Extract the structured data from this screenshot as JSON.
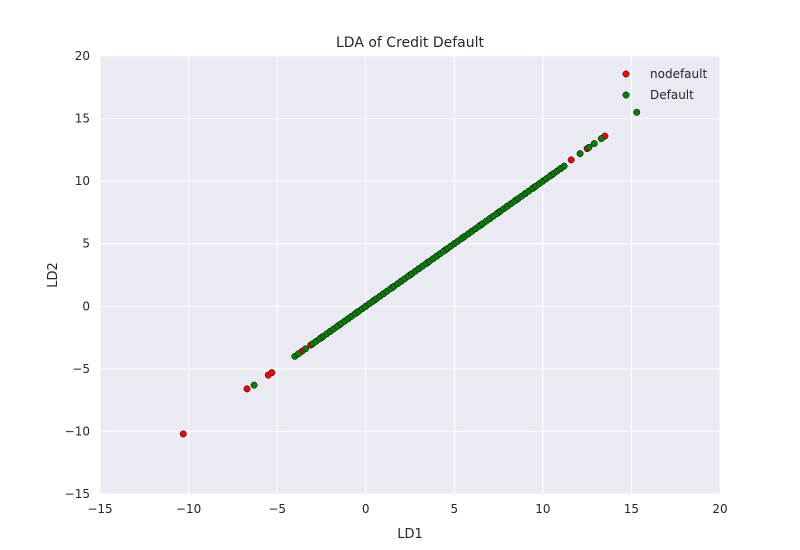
{
  "chart_data": {
    "type": "scatter",
    "title": "LDA of Credit Default",
    "xlabel": "LD1",
    "ylabel": "LD2",
    "xlim": [
      -15,
      20
    ],
    "ylim": [
      -15,
      20
    ],
    "xticks": [
      -15,
      -10,
      -5,
      0,
      5,
      10,
      15,
      20
    ],
    "yticks": [
      -15,
      -10,
      -5,
      0,
      5,
      10,
      15,
      20
    ],
    "xtick_labels": [
      "−15",
      "−10",
      "−5",
      "0",
      "5",
      "10",
      "15",
      "20"
    ],
    "ytick_labels": [
      "−15",
      "−10",
      "−5",
      "0",
      "5",
      "10",
      "15",
      "20"
    ],
    "grid": true,
    "legend_position": "top-right",
    "background_color": "#eaeaf2",
    "grid_color": "#ffffff",
    "series": [
      {
        "name": "nodefault",
        "color": "#ff0000",
        "x": [
          -10.3,
          -6.7,
          -5.5,
          -5.3,
          -3.6,
          -3.1,
          -2.5,
          -2.0,
          -1.5,
          -1.0,
          -0.5,
          0.0,
          0.5,
          1.0,
          1.5,
          2.0,
          2.5,
          3.0,
          3.5,
          4.0,
          4.5,
          5.0,
          5.5,
          6.0,
          6.5,
          7.0,
          7.5,
          8.0,
          8.5,
          9.0,
          9.5,
          10.0,
          10.5,
          11.0,
          11.6,
          12.5,
          13.5
        ],
        "y": [
          -10.2,
          -6.6,
          -5.5,
          -5.3,
          -3.6,
          -3.1,
          -2.5,
          -2.0,
          -1.5,
          -1.0,
          -0.5,
          0.0,
          0.5,
          1.0,
          1.5,
          2.0,
          2.5,
          3.0,
          3.5,
          4.0,
          4.5,
          5.0,
          5.5,
          6.0,
          6.5,
          7.0,
          7.5,
          8.0,
          8.5,
          9.0,
          9.5,
          10.0,
          10.5,
          11.0,
          11.7,
          12.6,
          13.6
        ]
      },
      {
        "name": "Default",
        "color": "#008000",
        "x": [
          -6.3,
          -4.0,
          -3.8,
          -3.4,
          -3.0,
          -2.8,
          -2.6,
          -2.4,
          -2.2,
          -2.0,
          -1.8,
          -1.6,
          -1.4,
          -1.2,
          -1.0,
          -0.8,
          -0.6,
          -0.4,
          -0.2,
          0.0,
          0.2,
          0.4,
          0.6,
          0.8,
          1.0,
          1.2,
          1.4,
          1.6,
          1.8,
          2.0,
          2.2,
          2.4,
          2.6,
          2.8,
          3.0,
          3.2,
          3.4,
          3.6,
          3.8,
          4.0,
          4.2,
          4.4,
          4.6,
          4.8,
          5.0,
          5.2,
          5.4,
          5.6,
          5.8,
          6.0,
          6.2,
          6.4,
          6.6,
          6.8,
          7.0,
          7.2,
          7.4,
          7.6,
          7.8,
          8.0,
          8.2,
          8.4,
          8.6,
          8.8,
          9.0,
          9.2,
          9.4,
          9.6,
          9.8,
          10.0,
          10.2,
          10.4,
          10.6,
          10.8,
          11.0,
          11.2,
          12.1,
          12.6,
          12.9,
          13.3,
          15.3
        ],
        "y": [
          -6.3,
          -4.0,
          -3.8,
          -3.4,
          -3.0,
          -2.8,
          -2.6,
          -2.4,
          -2.2,
          -2.0,
          -1.8,
          -1.6,
          -1.4,
          -1.2,
          -1.0,
          -0.8,
          -0.6,
          -0.4,
          -0.2,
          0.0,
          0.2,
          0.4,
          0.6,
          0.8,
          1.0,
          1.2,
          1.4,
          1.6,
          1.8,
          2.0,
          2.2,
          2.4,
          2.6,
          2.8,
          3.0,
          3.2,
          3.4,
          3.6,
          3.8,
          4.0,
          4.2,
          4.4,
          4.6,
          4.8,
          5.0,
          5.2,
          5.4,
          5.6,
          5.8,
          6.0,
          6.2,
          6.4,
          6.6,
          6.8,
          7.0,
          7.2,
          7.4,
          7.6,
          7.8,
          8.0,
          8.2,
          8.4,
          8.6,
          8.8,
          9.0,
          9.2,
          9.4,
          9.6,
          9.8,
          10.0,
          10.2,
          10.4,
          10.6,
          10.8,
          11.0,
          11.2,
          12.2,
          12.7,
          13.0,
          13.4,
          15.5
        ]
      }
    ]
  }
}
